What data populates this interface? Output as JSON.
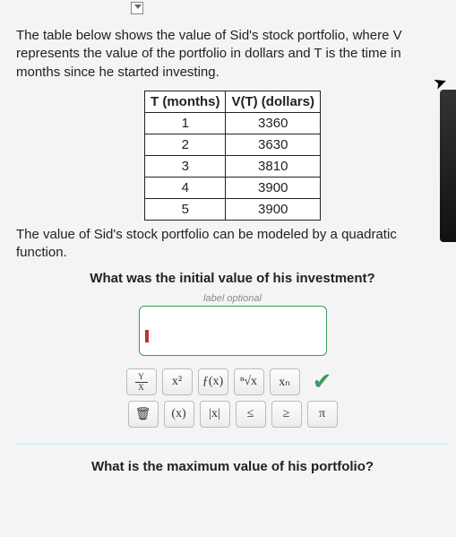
{
  "topFragment": "",
  "intro": "The table below shows the value of Sid's stock portfolio, where V represents the value of the portfolio in dollars and T is the time in months since he started investing.",
  "table": {
    "headers": [
      "T (months)",
      "V(T) (dollars)"
    ],
    "rows": [
      [
        "1",
        "3360"
      ],
      [
        "2",
        "3630"
      ],
      [
        "3",
        "3810"
      ],
      [
        "4",
        "3900"
      ],
      [
        "5",
        "3900"
      ]
    ],
    "border_color": "#222222",
    "background": "#ffffff"
  },
  "below": "The value of Sid's stock portfolio can be modeled by a quadratic function.",
  "question1": "What was the initial value of his investment?",
  "labelOptional": "label optional",
  "answerBox": {
    "border_color": "#3a9d5d",
    "caret_color": "#b33333"
  },
  "toolbar": {
    "row1": [
      {
        "id": "frac",
        "label_top": "Y",
        "label_bot": "X"
      },
      {
        "id": "xsq",
        "label": "x²"
      },
      {
        "id": "fx",
        "label": "ƒ(x)"
      },
      {
        "id": "nroot",
        "label": "ⁿ√x"
      },
      {
        "id": "xn",
        "label": "xₙ"
      },
      {
        "id": "check",
        "label": "✔"
      }
    ],
    "row2": [
      {
        "id": "trash",
        "label": "🗑"
      },
      {
        "id": "paren",
        "label": "(x)"
      },
      {
        "id": "abs",
        "label": "|x|"
      },
      {
        "id": "le",
        "label": "≤"
      },
      {
        "id": "ge",
        "label": "≥"
      },
      {
        "id": "pi",
        "label": "π"
      }
    ]
  },
  "question2": "What is the maximum value of his portfolio?",
  "colors": {
    "page_bg": "#f4f4f6",
    "text": "#222222",
    "accent_green": "#3a9d5d",
    "divider": "#c9e8f4"
  }
}
